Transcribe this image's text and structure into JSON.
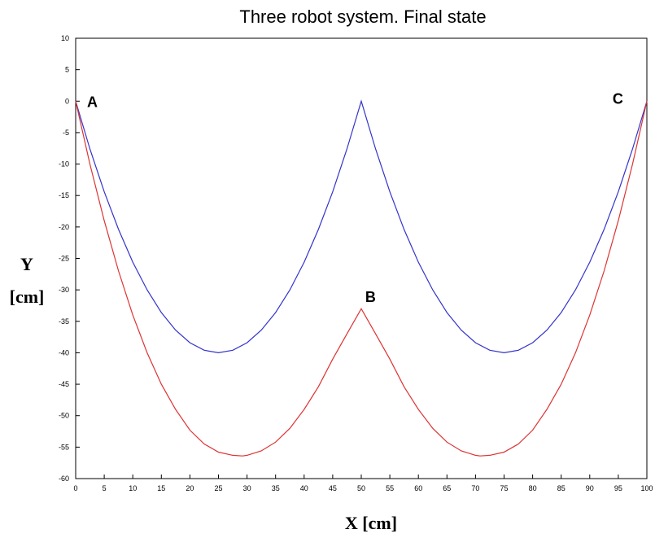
{
  "chart_data": {
    "type": "line",
    "title": "Three robot system. Final state",
    "xlabel": "X [cm]",
    "ylabel_line1": "Y",
    "ylabel_line2": "[cm]",
    "xlim": [
      0,
      100
    ],
    "ylim": [
      -60,
      10
    ],
    "xticks": [
      0,
      5,
      10,
      15,
      20,
      25,
      30,
      35,
      40,
      45,
      50,
      55,
      60,
      65,
      70,
      75,
      80,
      85,
      90,
      95,
      100
    ],
    "yticks": [
      10,
      5,
      0,
      -5,
      -10,
      -15,
      -20,
      -25,
      -30,
      -35,
      -40,
      -45,
      -50,
      -55,
      -60
    ],
    "grid": false,
    "series": [
      {
        "color": "#3333cc",
        "x": [
          0,
          2.5,
          5,
          7.5,
          10,
          12.5,
          15,
          17.5,
          20,
          22.5,
          25,
          27.5,
          30,
          32.5,
          35,
          37.5,
          40,
          42.5,
          45,
          47.5,
          50,
          52.5,
          55,
          57.5,
          60,
          62.5,
          65,
          67.5,
          70,
          72.5,
          75,
          77.5,
          80,
          82.5,
          85,
          87.5,
          90,
          92.5,
          95,
          97.5,
          100
        ],
        "y": [
          0,
          -7.6,
          -14.4,
          -20.4,
          -25.6,
          -30,
          -33.6,
          -36.4,
          -38.4,
          -39.6,
          -40,
          -39.6,
          -38.4,
          -36.4,
          -33.6,
          -30,
          -25.6,
          -20.4,
          -14.4,
          -7.6,
          0,
          -7.6,
          -14.4,
          -20.4,
          -25.6,
          -30,
          -33.6,
          -36.4,
          -38.4,
          -39.6,
          -40,
          -39.6,
          -38.4,
          -36.4,
          -33.6,
          -30,
          -25.6,
          -20.4,
          -14.4,
          -7.6,
          0
        ]
      },
      {
        "color": "#dd3333",
        "x": [
          0,
          2.5,
          5,
          7.5,
          10,
          12.5,
          15,
          17.5,
          20,
          22.5,
          25,
          27.5,
          29.2,
          30,
          32.5,
          35,
          37.5,
          40,
          42.5,
          45,
          47.5,
          50,
          52.5,
          55,
          57.5,
          60,
          62.5,
          65,
          67.5,
          70,
          70.8,
          72.5,
          75,
          77.5,
          80,
          82.5,
          85,
          87.5,
          90,
          92.5,
          95,
          97.5,
          100
        ],
        "y": [
          0,
          -10,
          -19,
          -27,
          -34,
          -40,
          -45,
          -49,
          -52.3,
          -54.5,
          -55.8,
          -56.3,
          -56.4,
          -56.3,
          -55.6,
          -54.2,
          -52,
          -49,
          -45.4,
          -41,
          -37,
          -33,
          -37,
          -41,
          -45.4,
          -49,
          -52,
          -54.2,
          -55.6,
          -56.3,
          -56.4,
          -56.3,
          -55.8,
          -54.5,
          -52.3,
          -49,
          -45,
          -40,
          -34,
          -27,
          -19,
          -10,
          0
        ]
      }
    ],
    "annotations": [
      {
        "text": "A",
        "x": 2,
        "y": 0
      },
      {
        "text": "B",
        "x": 50.7,
        "y": -31
      },
      {
        "text": "C",
        "x": 94,
        "y": 0.5
      }
    ]
  }
}
